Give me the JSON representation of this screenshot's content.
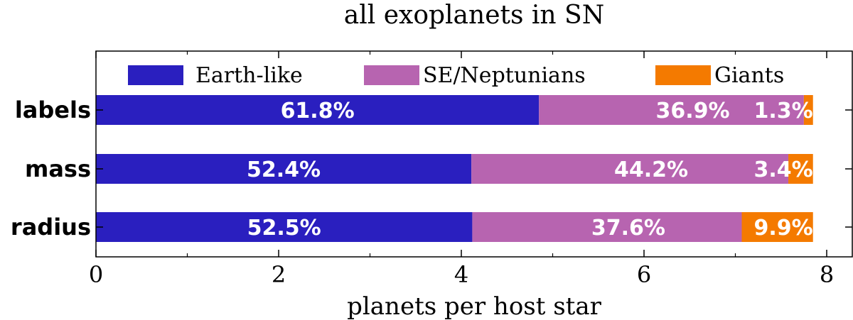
{
  "chart_data": {
    "type": "bar",
    "orientation": "horizontal",
    "stacked": true,
    "title": "all exoplanets in SN",
    "xlabel": "planets per host star",
    "ylabel": "",
    "xlim": [
      0,
      8
    ],
    "xticks": [
      "0",
      "2",
      "4",
      "6",
      "8"
    ],
    "categories": [
      "labels",
      "mass",
      "radius"
    ],
    "totals": [
      7.85,
      7.85,
      7.85
    ],
    "series": [
      {
        "name": "Earth-like",
        "color": "#2a1fbf",
        "percent_labels": [
          "61.8%",
          "52.4%",
          "52.5%"
        ],
        "values": [
          4.85,
          4.11,
          4.12
        ]
      },
      {
        "name": "SE/Neptunians",
        "color": "#b764b0",
        "percent_labels": [
          "36.9%",
          "44.2%",
          "37.6%"
        ],
        "values": [
          2.9,
          3.47,
          2.95
        ]
      },
      {
        "name": "Giants",
        "color": "#f47a00",
        "percent_labels": [
          "1.3%",
          "3.4%",
          "9.9%"
        ],
        "values": [
          0.1,
          0.27,
          0.78
        ]
      }
    ],
    "legend": "top",
    "grid": false
  }
}
